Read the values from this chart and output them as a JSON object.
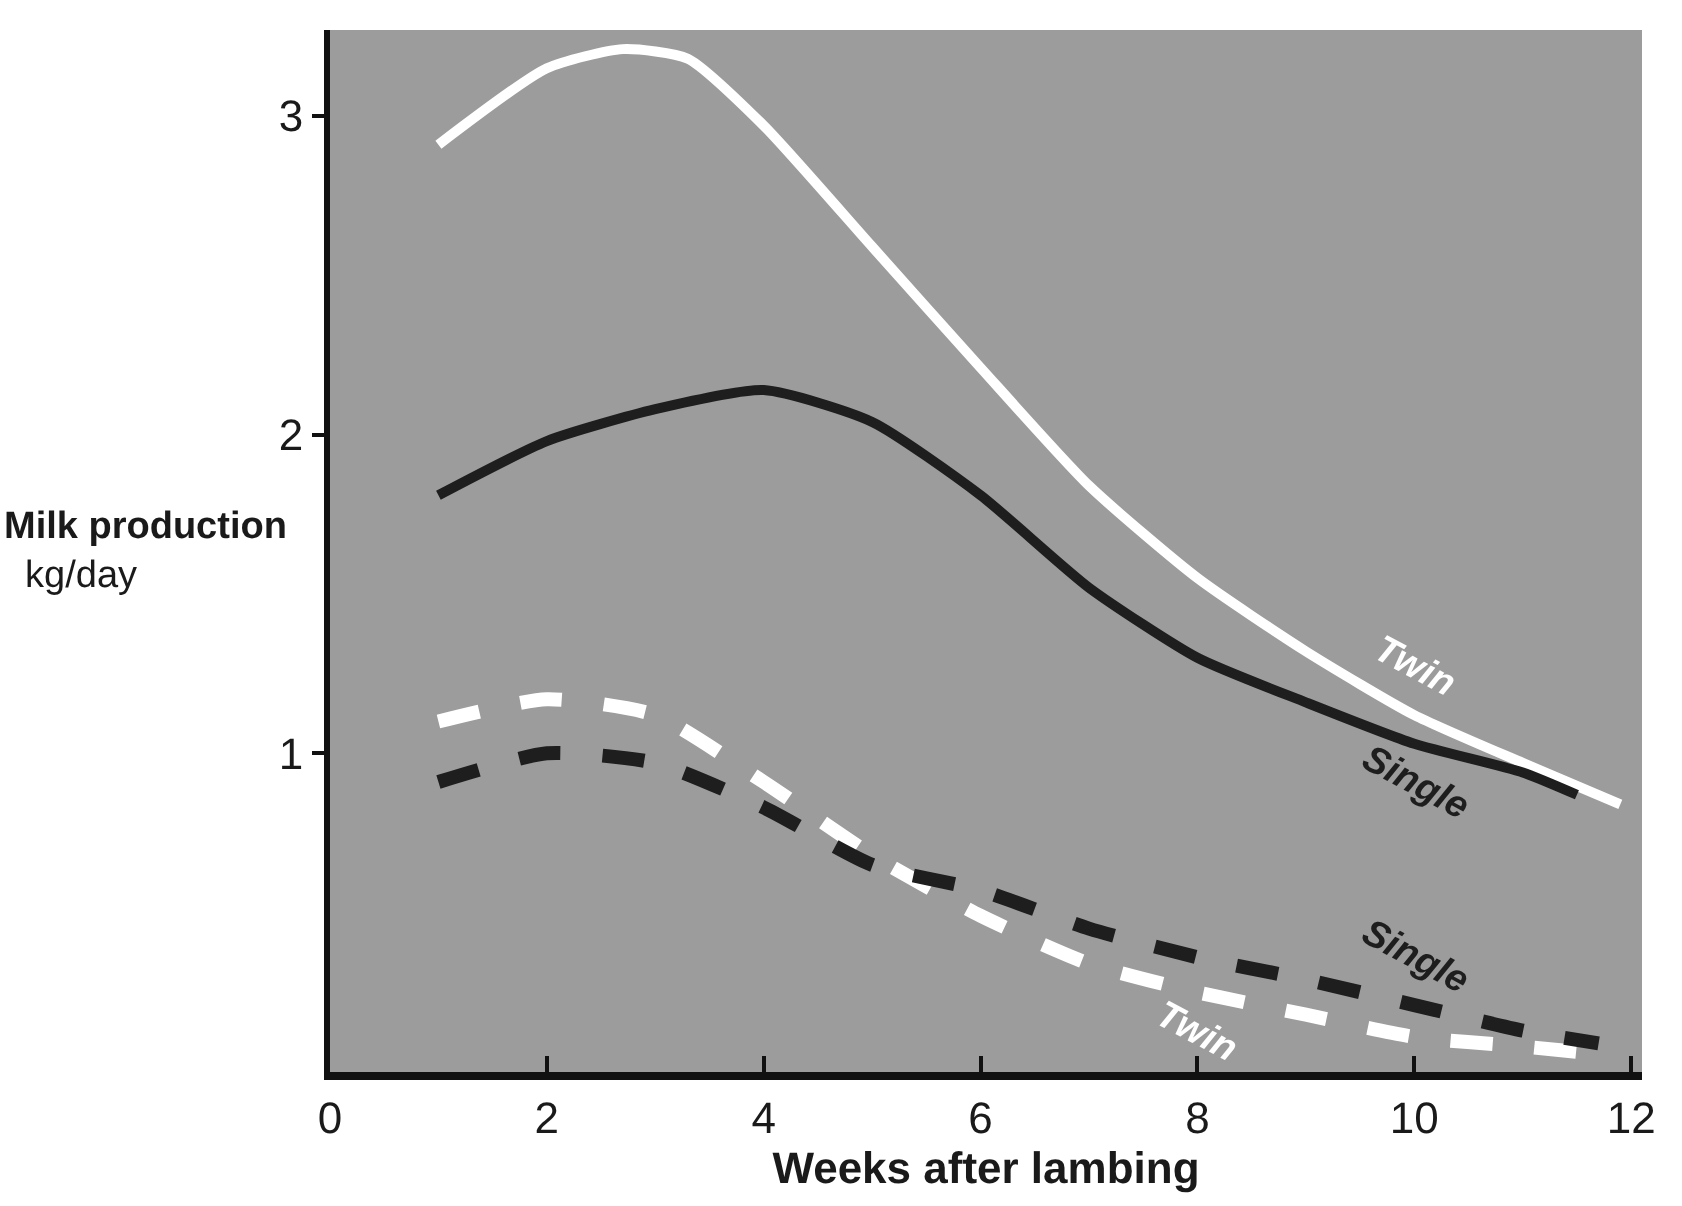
{
  "chart_data": {
    "type": "line",
    "xlabel": "Weeks after lambing",
    "ylabel": "Milk production\nkg/day",
    "x": [
      1,
      2,
      2.7,
      3.3,
      4,
      5,
      6,
      7,
      8,
      9,
      10,
      11,
      11.9
    ],
    "series": [
      {
        "name": "Twin",
        "color": "#ffffff",
        "line_style": "solid",
        "values": [
          2.91,
          3.15,
          3.21,
          3.18,
          2.97,
          2.59,
          2.21,
          1.84,
          1.55,
          1.32,
          1.12,
          0.97,
          0.84
        ]
      },
      {
        "name": "Single",
        "color": "#1e1e1e",
        "line_style": "solid",
        "x": [
          1,
          2,
          3,
          4,
          5,
          6,
          7,
          8,
          9,
          10,
          11,
          11.5
        ],
        "values": [
          1.81,
          1.98,
          2.08,
          2.14,
          2.04,
          1.81,
          1.52,
          1.3,
          1.16,
          1.03,
          0.94,
          0.87
        ]
      },
      {
        "name": "Twin",
        "color": "#ffffff",
        "line_style": "dashed",
        "x": [
          1,
          2,
          3,
          4,
          5,
          6,
          7,
          8,
          9,
          10,
          11,
          11.6
        ],
        "values": [
          1.1,
          1.17,
          1.12,
          0.91,
          0.68,
          0.49,
          0.34,
          0.25,
          0.18,
          0.11,
          0.08,
          0.06
        ]
      },
      {
        "name": "Single",
        "color": "#1e1e1e",
        "line_style": "dashed",
        "x": [
          1,
          2,
          3,
          4,
          5,
          6,
          7,
          8,
          9,
          10,
          11,
          11.7
        ],
        "values": [
          0.91,
          1.0,
          0.97,
          0.83,
          0.65,
          0.57,
          0.45,
          0.36,
          0.29,
          0.21,
          0.13,
          0.09
        ]
      }
    ],
    "xlim": [
      0,
      12.1
    ],
    "ylim": [
      0,
      3.27
    ],
    "xticks": [
      0,
      2,
      4,
      6,
      8,
      10,
      12
    ],
    "yticks": [
      1,
      2,
      3
    ],
    "grid": false,
    "legend": false
  }
}
